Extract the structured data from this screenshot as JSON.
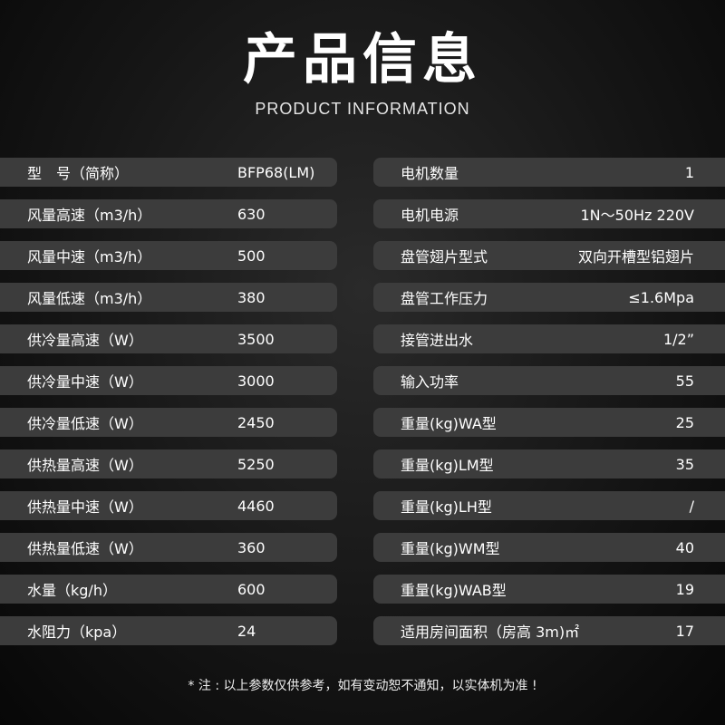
{
  "header": {
    "title": "产品信息",
    "subtitle": "PRODUCT INFORMATION"
  },
  "left": [
    {
      "label": "型　号（简称）",
      "value": "BFP68(LM)"
    },
    {
      "label": "风量高速（m3/h）",
      "value": "630"
    },
    {
      "label": "风量中速（m3/h）",
      "value": "500"
    },
    {
      "label": "风量低速（m3/h）",
      "value": "380"
    },
    {
      "label": "供冷量高速（W）",
      "value": "3500"
    },
    {
      "label": "供冷量中速（W）",
      "value": "3000"
    },
    {
      "label": "供冷量低速（W）",
      "value": "2450"
    },
    {
      "label": "供热量高速（W）",
      "value": "5250"
    },
    {
      "label": "供热量中速（W）",
      "value": "4460"
    },
    {
      "label": "供热量低速（W）",
      "value": "360"
    },
    {
      "label": "水量（kg/h）",
      "value": "600"
    },
    {
      "label": "水阻力（kpa）",
      "value": "24"
    }
  ],
  "right": [
    {
      "label": "电机数量",
      "value": "1"
    },
    {
      "label": "电机电源",
      "value": "1N～50Hz  220V"
    },
    {
      "label": "盘管翅片型式",
      "value": "双向开槽型铝翅片"
    },
    {
      "label": "盘管工作压力",
      "value": "≤1.6Mpa"
    },
    {
      "label": "接管进出水",
      "value": "1/2”"
    },
    {
      "label": "输入功率",
      "value": "55"
    },
    {
      "label": "重量(kg)WA型",
      "value": "25"
    },
    {
      "label": "重量(kg)LM型",
      "value": "35"
    },
    {
      "label": "重量(kg)LH型",
      "value": "/"
    },
    {
      "label": "重量(kg)WM型",
      "value": "40"
    },
    {
      "label": "重量(kg)WAB型",
      "value": "19"
    },
    {
      "label": "适用房间面积（房高 3m)㎡",
      "value": "17"
    }
  ],
  "note": "* 注 : 以上参数仅供参考，如有变动恕不通知，以实体机为准 !"
}
